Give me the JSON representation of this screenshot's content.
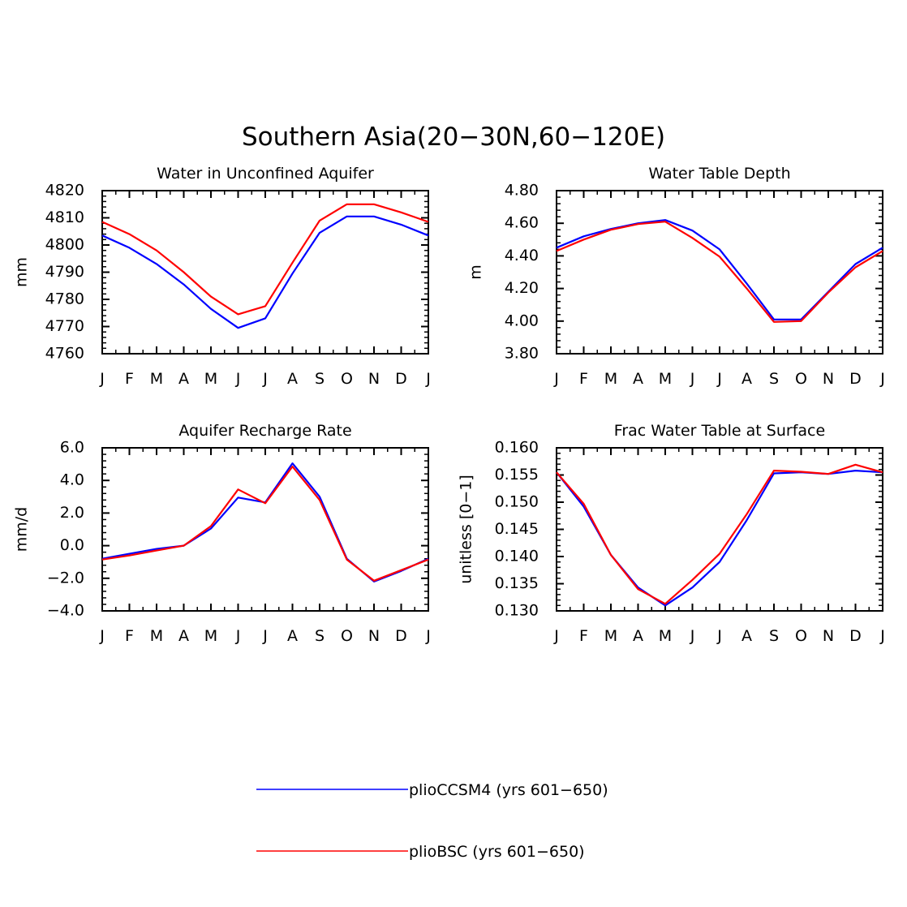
{
  "figure_title": "Southern Asia(20−30N,60−120E)",
  "colors": {
    "plioCCSM4": "#0000ff",
    "plioBSC": "#ff0000"
  },
  "legend": [
    {
      "label": "plioCCSM4 (yrs 601−650)",
      "color": "#0000ff"
    },
    {
      "label": "plioBSC (yrs 601−650)",
      "color": "#ff0000"
    }
  ],
  "chart_data": [
    {
      "type": "line",
      "title": "Water in Unconfined Aquifer",
      "ylabel": "mm",
      "xlabel": "",
      "categories": [
        "J",
        "F",
        "M",
        "A",
        "M",
        "J",
        "J",
        "A",
        "S",
        "O",
        "N",
        "D",
        "J"
      ],
      "ylim": [
        4760,
        4820
      ],
      "yticks": [
        4760,
        4770,
        4780,
        4790,
        4800,
        4810,
        4820
      ],
      "ytick_labels": [
        "4760",
        "4770",
        "4780",
        "4790",
        "4800",
        "4810",
        "4820"
      ],
      "grid": false,
      "series": [
        {
          "name": "plioCCSM4 (yrs 601−650)",
          "color": "#0000ff",
          "values": [
            4803.5,
            4799,
            4793,
            4785.5,
            4776.5,
            4769.5,
            4773,
            4789.5,
            4804.5,
            4810.5,
            4810.5,
            4807.5,
            4803.5
          ]
        },
        {
          "name": "plioBSC (yrs 601−650)",
          "color": "#ff0000",
          "values": [
            4808.5,
            4804,
            4798,
            4790,
            4781,
            4774.5,
            4777.5,
            4793.5,
            4809,
            4815,
            4815,
            4812,
            4808.5
          ]
        }
      ]
    },
    {
      "type": "line",
      "title": "Water Table Depth",
      "ylabel": "m",
      "xlabel": "",
      "categories": [
        "J",
        "F",
        "M",
        "A",
        "M",
        "J",
        "J",
        "A",
        "S",
        "O",
        "N",
        "D",
        "J"
      ],
      "ylim": [
        3.8,
        4.8
      ],
      "yticks": [
        3.8,
        4.0,
        4.2,
        4.4,
        4.6,
        4.8
      ],
      "ytick_labels": [
        "3.80",
        "4.00",
        "4.20",
        "4.40",
        "4.60",
        "4.80"
      ],
      "grid": false,
      "series": [
        {
          "name": "plioCCSM4 (yrs 601−650)",
          "color": "#0000ff",
          "values": [
            4.45,
            4.52,
            4.565,
            4.6,
            4.62,
            4.555,
            4.44,
            4.23,
            4.01,
            4.01,
            4.18,
            4.35,
            4.45
          ]
        },
        {
          "name": "plioBSC (yrs 601−650)",
          "color": "#ff0000",
          "values": [
            4.43,
            4.5,
            4.56,
            4.595,
            4.61,
            4.51,
            4.395,
            4.2,
            3.995,
            4.0,
            4.175,
            4.33,
            4.43
          ]
        }
      ]
    },
    {
      "type": "line",
      "title": "Aquifer Recharge Rate",
      "ylabel": "mm/d",
      "xlabel": "",
      "categories": [
        "J",
        "F",
        "M",
        "A",
        "M",
        "J",
        "J",
        "A",
        "S",
        "O",
        "N",
        "D",
        "J"
      ],
      "ylim": [
        -4,
        6
      ],
      "yticks": [
        -4,
        -2,
        0,
        2,
        4,
        6
      ],
      "ytick_labels": [
        "−4.0",
        "−2.0",
        "0.0",
        "2.0",
        "4.0",
        "6.0"
      ],
      "grid": false,
      "series": [
        {
          "name": "plioCCSM4 (yrs 601−650)",
          "color": "#0000ff",
          "values": [
            -0.8,
            -0.5,
            -0.2,
            0.0,
            1.05,
            2.95,
            2.65,
            5.05,
            3.0,
            -0.8,
            -2.2,
            -1.55,
            -0.8
          ]
        },
        {
          "name": "plioBSC (yrs 601−650)",
          "color": "#ff0000",
          "values": [
            -0.85,
            -0.6,
            -0.3,
            0.0,
            1.2,
            3.45,
            2.6,
            4.85,
            2.8,
            -0.85,
            -2.15,
            -1.5,
            -0.85
          ]
        }
      ]
    },
    {
      "type": "line",
      "title": "Frac Water Table at Surface",
      "ylabel": "unitless [0−1]",
      "xlabel": "",
      "categories": [
        "J",
        "F",
        "M",
        "A",
        "M",
        "J",
        "J",
        "A",
        "S",
        "O",
        "N",
        "D",
        "J"
      ],
      "ylim": [
        0.13,
        0.16
      ],
      "yticks": [
        0.13,
        0.135,
        0.14,
        0.145,
        0.15,
        0.155,
        0.16
      ],
      "ytick_labels": [
        "0.130",
        "0.135",
        "0.140",
        "0.145",
        "0.150",
        "0.155",
        "0.160"
      ],
      "grid": false,
      "series": [
        {
          "name": "plioCCSM4 (yrs 601−650)",
          "color": "#0000ff",
          "values": [
            0.1555,
            0.1492,
            0.1403,
            0.1343,
            0.131,
            0.1343,
            0.139,
            0.1467,
            0.1553,
            0.1555,
            0.1552,
            0.1558,
            0.1555
          ]
        },
        {
          "name": "plioBSC (yrs 601−650)",
          "color": "#ff0000",
          "values": [
            0.1555,
            0.1497,
            0.1403,
            0.134,
            0.1313,
            0.1357,
            0.1405,
            0.1478,
            0.1558,
            0.1556,
            0.1552,
            0.1569,
            0.1555
          ]
        }
      ]
    }
  ]
}
